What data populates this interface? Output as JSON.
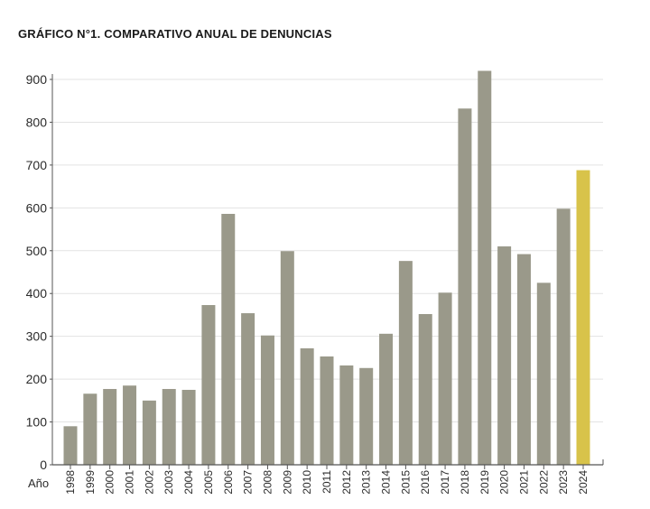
{
  "chart_data": {
    "type": "bar",
    "title": "GRÁFICO N°1. COMPARATIVO ANUAL DE DENUNCIAS",
    "xlabel": "Año",
    "ylabel": "",
    "categories": [
      "1998",
      "1999",
      "2000",
      "2001",
      "2002",
      "2003",
      "2004",
      "2005",
      "2006",
      "2007",
      "2008",
      "2009",
      "2010",
      "2011",
      "2012",
      "2013",
      "2014",
      "2015",
      "2016",
      "2017",
      "2018",
      "2019",
      "2020",
      "2021",
      "2022",
      "2023",
      "2024"
    ],
    "values": [
      90,
      166,
      177,
      185,
      150,
      177,
      175,
      373,
      586,
      354,
      302,
      499,
      272,
      253,
      232,
      226,
      306,
      476,
      352,
      402,
      832,
      920,
      510,
      492,
      425,
      598,
      688
    ],
    "ylim": [
      0,
      940
    ],
    "yticks": [
      0,
      100,
      200,
      300,
      400,
      500,
      600,
      700,
      800,
      900
    ],
    "grid": true,
    "legend": "none",
    "colors": {
      "bar": "#9a998a",
      "highlight": "#d8c34a",
      "grid": "#e3e3e3",
      "axis": "#555555"
    },
    "highlight_category": "2024"
  }
}
